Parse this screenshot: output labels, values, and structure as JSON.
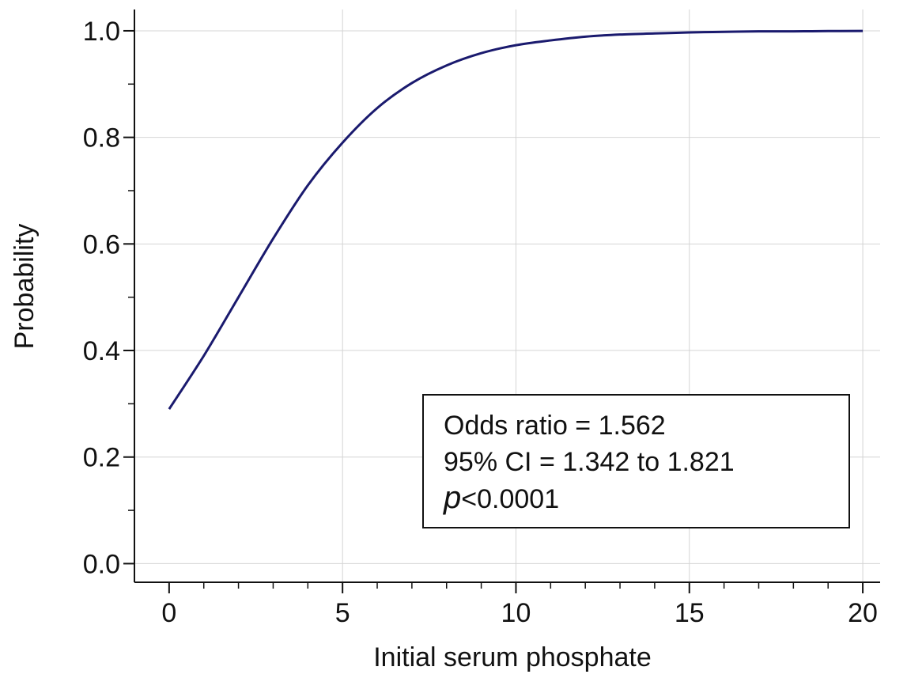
{
  "chart_data": {
    "type": "line",
    "title": "",
    "xlabel": "Initial serum phosphate",
    "ylabel": "Probability",
    "xlim": [
      -1,
      20.5
    ],
    "ylim": [
      -0.035,
      1.04
    ],
    "xticks": [
      0,
      5,
      10,
      15,
      20
    ],
    "xtick_labels": [
      "0",
      "5",
      "10",
      "15",
      "20"
    ],
    "yticks": [
      0,
      0.2,
      0.4,
      0.6,
      0.8,
      1.0
    ],
    "ytick_labels": [
      "0.0",
      "0.2",
      "0.4",
      "0.6",
      "0.8",
      "1.0"
    ],
    "grid": true,
    "line_color": "#1a1a6e",
    "series": [
      {
        "x": [
          0,
          1,
          2,
          3,
          4,
          5,
          6,
          7,
          8,
          9,
          10,
          11,
          12,
          13,
          14,
          15,
          16,
          17,
          18,
          19,
          20
        ],
        "values": [
          0.29,
          0.39,
          0.5,
          0.61,
          0.71,
          0.79,
          0.855,
          0.902,
          0.935,
          0.958,
          0.973,
          0.982,
          0.989,
          0.993,
          0.995,
          0.997,
          0.998,
          0.999,
          0.999,
          0.9995,
          0.9997
        ]
      }
    ],
    "annotation": {
      "line1": "Odds ratio = 1.562",
      "line2": "95% CI = 1.342 to 1.821",
      "p_symbol": "p",
      "p_value": "<0.0001",
      "position": "bottom-right"
    }
  }
}
